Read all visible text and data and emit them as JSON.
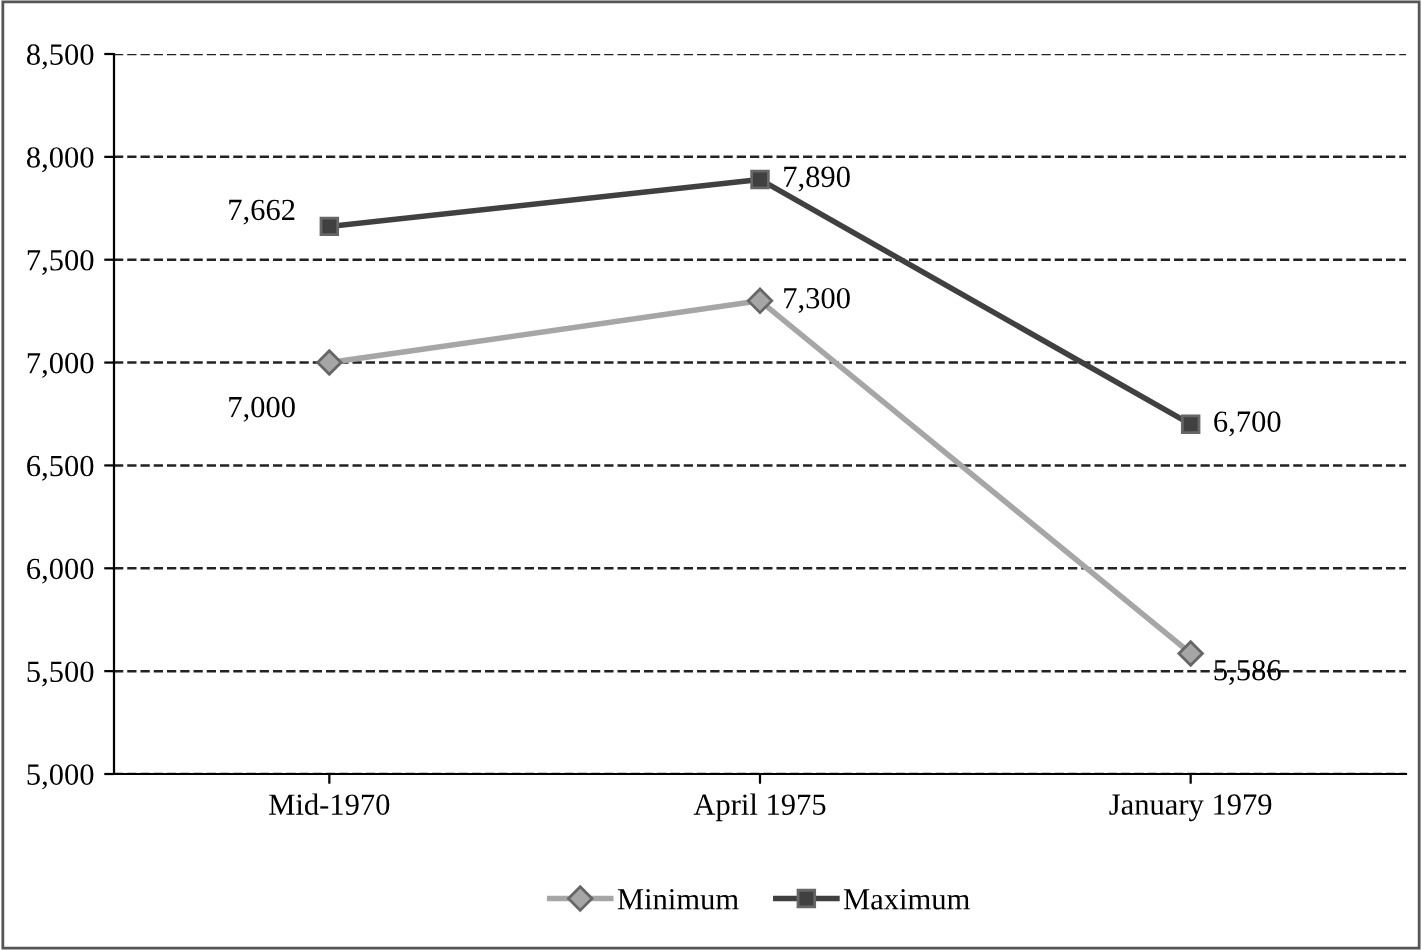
{
  "chart_data": {
    "type": "line",
    "categories": [
      "Mid-1970",
      "April 1975",
      "January 1979"
    ],
    "series": [
      {
        "name": "Minimum",
        "color": "#a6a6a6",
        "marker": "diamond",
        "values": [
          7000,
          7300,
          5586
        ],
        "value_labels": [
          "7,000",
          "7,300",
          "5,586"
        ]
      },
      {
        "name": "Maximum",
        "color": "#404040",
        "marker": "square",
        "values": [
          7662,
          7890,
          6700
        ],
        "value_labels": [
          "7,662",
          "7,890",
          "6,700"
        ]
      }
    ],
    "ylim": [
      5000,
      8500
    ],
    "yticks": [
      {
        "value": 5000,
        "label": "5,000"
      },
      {
        "value": 5500,
        "label": "5,500"
      },
      {
        "value": 6000,
        "label": "6,000"
      },
      {
        "value": 6500,
        "label": "6,500"
      },
      {
        "value": 7000,
        "label": "7,000"
      },
      {
        "value": 7500,
        "label": "7,500"
      },
      {
        "value": 8000,
        "label": "8,000"
      },
      {
        "value": 8500,
        "label": "8,500"
      }
    ],
    "grid": "y",
    "legend": "bottom",
    "line_style": "solid"
  }
}
